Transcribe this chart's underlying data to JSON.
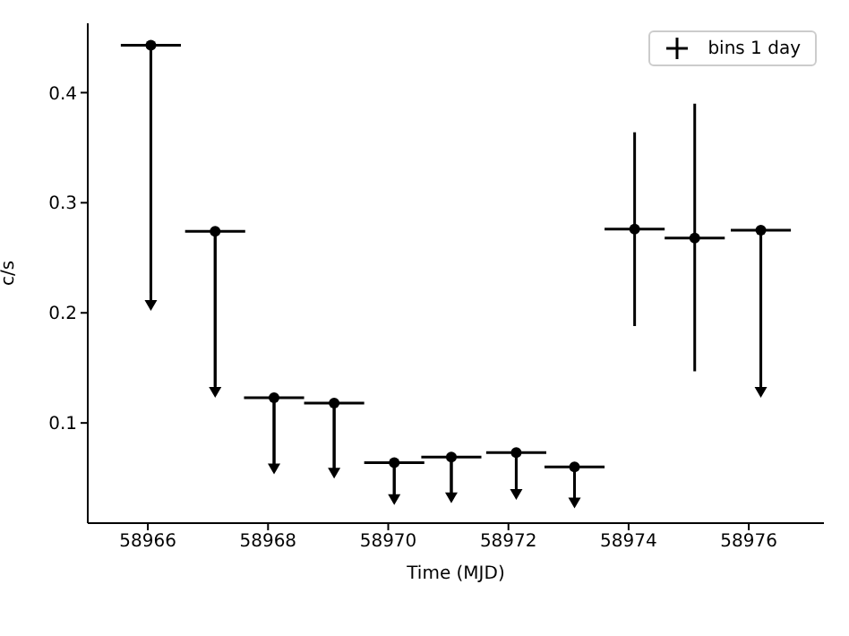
{
  "chart_data": {
    "type": "scatter",
    "xlabel": "Time (MJD)",
    "ylabel": "c/s",
    "x": [
      58966.05,
      58967.12,
      58968.1,
      58969.1,
      58970.1,
      58971.05,
      58972.13,
      58973.1,
      58974.1,
      58975.1,
      58976.2
    ],
    "series": [
      {
        "name": "bins 1 day",
        "color": "#000000",
        "values": [
          0.443,
          0.274,
          0.123,
          0.118,
          0.064,
          0.069,
          0.073,
          0.06,
          0.276,
          0.268,
          0.275
        ],
        "errors": [
          [
            0.218,
            0.443
          ],
          [
            0.133,
            0.274
          ],
          [
            0.058,
            0.123
          ],
          [
            0.054,
            0.118
          ],
          [
            0.028,
            0.064
          ],
          [
            0.03,
            0.069
          ],
          [
            0.033,
            0.073
          ],
          [
            0.025,
            0.06
          ],
          [
            0.188,
            0.364
          ],
          [
            0.147,
            0.39
          ],
          [
            0.133,
            0.275
          ]
        ],
        "xerrors": [
          0.5,
          0.5,
          0.5,
          0.5,
          0.5,
          0.5,
          0.5,
          0.5,
          0.5,
          0.5,
          0.5
        ]
      }
    ],
    "xlim": [
      58965,
      58977.25
    ],
    "xticks": [
      58966,
      58968,
      58970,
      58972,
      58974,
      58976
    ],
    "ylim": [
      0.009,
      0.463
    ],
    "yticks": [
      0.1,
      0.2,
      0.3,
      0.4
    ],
    "marker": "circle",
    "grid": false,
    "legend": "top right"
  }
}
